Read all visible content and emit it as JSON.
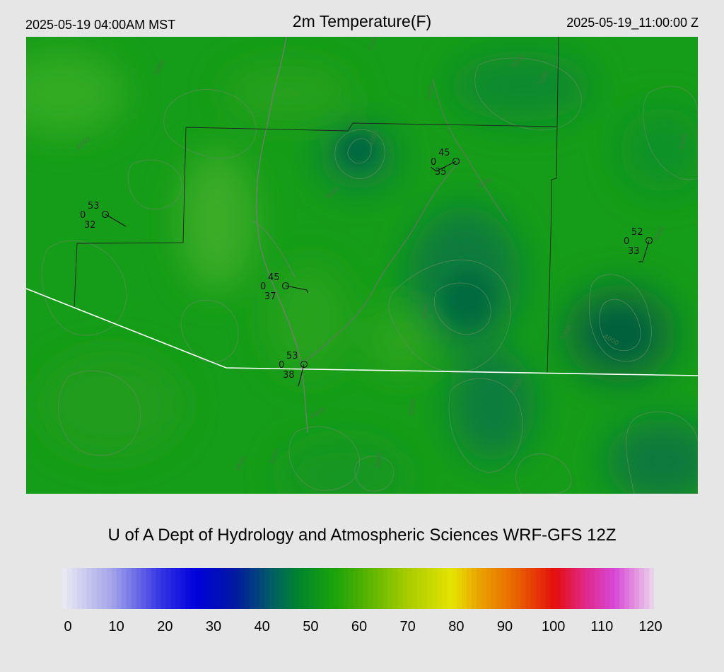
{
  "header": {
    "local_time": "2025-05-19 04:00AM MST",
    "title": "2m Temperature(F)",
    "utc_time": "2025-05-19_11:00:00 Z"
  },
  "credit": "U of A Dept of Hydrology and Atmospheric Sciences WRF-GFS 12Z",
  "colorbar": {
    "unit": "F",
    "range": [
      0,
      120
    ],
    "ticks": [
      "0",
      "10",
      "20",
      "30",
      "40",
      "50",
      "60",
      "70",
      "80",
      "90",
      "100",
      "110",
      "120"
    ],
    "stops": [
      {
        "value": 0,
        "color": "#ececf4"
      },
      {
        "value": 10,
        "color": "#a4a4ea"
      },
      {
        "value": 20,
        "color": "#3434e4"
      },
      {
        "value": 27,
        "color": "#0000dc"
      },
      {
        "value": 35,
        "color": "#0018a0"
      },
      {
        "value": 42,
        "color": "#005a6a"
      },
      {
        "value": 48,
        "color": "#00862c"
      },
      {
        "value": 55,
        "color": "#1aa20c"
      },
      {
        "value": 62,
        "color": "#58b400"
      },
      {
        "value": 70,
        "color": "#a8cc00"
      },
      {
        "value": 79,
        "color": "#e6e400"
      },
      {
        "value": 84,
        "color": "#eaa800"
      },
      {
        "value": 92,
        "color": "#e86400"
      },
      {
        "value": 100,
        "color": "#e40e0e"
      },
      {
        "value": 106,
        "color": "#e02888"
      },
      {
        "value": 112,
        "color": "#d848d8"
      },
      {
        "value": 117,
        "color": "#e4a0e2"
      },
      {
        "value": 120,
        "color": "#ead8ea"
      }
    ]
  },
  "stations": [
    {
      "temp": "53",
      "dewpoint": "32",
      "wind": "0"
    },
    {
      "temp": "45",
      "dewpoint": "35",
      "wind": "0"
    },
    {
      "temp": "52",
      "dewpoint": "33",
      "wind": "0"
    },
    {
      "temp": "45",
      "dewpoint": "37",
      "wind": "0"
    },
    {
      "temp": "53",
      "dewpoint": "38",
      "wind": "0"
    }
  ],
  "contour_labels": [
    "5000",
    "4000",
    "4500",
    "5000",
    "4000",
    "5000",
    "5000",
    "4000",
    "5000",
    "4500",
    "5000",
    "4500",
    "5000",
    "4000",
    "5000",
    "5000",
    "5000",
    "4000",
    "4500",
    "4500"
  ]
}
